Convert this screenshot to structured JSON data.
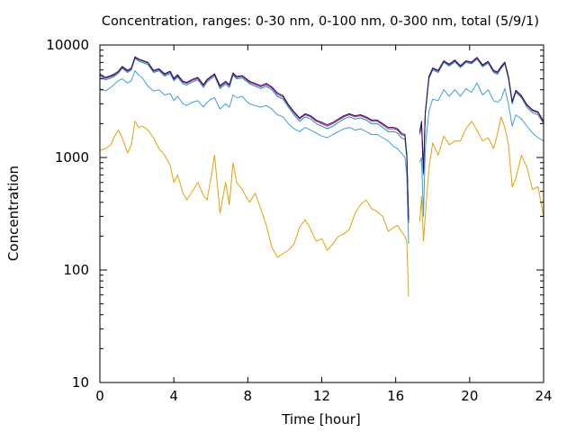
{
  "chart_data": {
    "type": "line",
    "title": "Concentration, ranges: 0-30 nm, 0-100 nm, 0-300 nm, total (5/9/1)",
    "xlabel": "Time [hour]",
    "ylabel": "Concentration",
    "xlim": [
      0,
      24
    ],
    "ylim": [
      10,
      10000
    ],
    "yscale": "log",
    "grid": false,
    "legend": "none",
    "x_ticks": [
      0,
      4,
      8,
      12,
      16,
      20,
      24
    ],
    "y_ticks": [
      10,
      100,
      1000,
      10000
    ],
    "gap": [
      16.75,
      17.3
    ],
    "series": [
      {
        "color": "#e6a000",
        "x": [
          0,
          0.3,
          0.6,
          0.8,
          1.0,
          1.2,
          1.5,
          1.7,
          1.9,
          2.1,
          2.3,
          2.6,
          2.9,
          3.2,
          3.5,
          3.8,
          4.0,
          4.2,
          4.5,
          4.7,
          5.0,
          5.3,
          5.6,
          5.8,
          6.0,
          6.2,
          6.5,
          6.8,
          7.0,
          7.2,
          7.4,
          7.7,
          7.9,
          8.1,
          8.4,
          8.7,
          9.0,
          9.3,
          9.6,
          9.9,
          10.2,
          10.5,
          10.8,
          11.1,
          11.4,
          11.7,
          12.0,
          12.3,
          12.6,
          12.9,
          13.2,
          13.5,
          13.8,
          14.1,
          14.4,
          14.7,
          15.0,
          15.3,
          15.6,
          15.9,
          16.1,
          16.3,
          16.5,
          16.6,
          16.7,
          17.3,
          17.4,
          17.5,
          17.6,
          17.8,
          18.0,
          18.3,
          18.6,
          18.9,
          19.2,
          19.5,
          19.8,
          20.1,
          20.4,
          20.7,
          21.0,
          21.3,
          21.5,
          21.7,
          21.9,
          22.1,
          22.3,
          22.5,
          22.8,
          23.1,
          23.4,
          23.7,
          24.0
        ],
        "values": [
          1150,
          1200,
          1300,
          1550,
          1750,
          1500,
          1100,
          1300,
          2100,
          1850,
          1900,
          1750,
          1500,
          1200,
          1050,
          850,
          600,
          700,
          480,
          420,
          500,
          600,
          460,
          420,
          650,
          1050,
          320,
          600,
          380,
          900,
          600,
          520,
          450,
          400,
          480,
          350,
          250,
          160,
          130,
          140,
          150,
          170,
          240,
          280,
          230,
          180,
          190,
          150,
          170,
          200,
          210,
          230,
          320,
          380,
          420,
          350,
          330,
          300,
          220,
          240,
          250,
          220,
          200,
          180,
          58,
          270,
          450,
          180,
          300,
          800,
          1350,
          1050,
          1550,
          1300,
          1400,
          1400,
          1800,
          2100,
          1750,
          1400,
          1500,
          1200,
          1600,
          2300,
          1850,
          1300,
          550,
          650,
          1050,
          820,
          520,
          550,
          300
        ]
      },
      {
        "color": "#3aa0d8",
        "x": [
          0,
          0.3,
          0.6,
          0.8,
          1.0,
          1.2,
          1.5,
          1.7,
          1.9,
          2.1,
          2.3,
          2.6,
          2.9,
          3.2,
          3.5,
          3.8,
          4.0,
          4.2,
          4.5,
          4.7,
          5.0,
          5.3,
          5.6,
          5.8,
          6.0,
          6.2,
          6.5,
          6.8,
          7.0,
          7.2,
          7.4,
          7.7,
          7.9,
          8.1,
          8.4,
          8.7,
          9.0,
          9.3,
          9.6,
          9.9,
          10.2,
          10.5,
          10.8,
          11.1,
          11.4,
          11.7,
          12.0,
          12.3,
          12.6,
          12.9,
          13.2,
          13.5,
          13.8,
          14.1,
          14.4,
          14.7,
          15.0,
          15.3,
          15.6,
          15.9,
          16.1,
          16.3,
          16.5,
          16.6,
          16.7,
          17.3,
          17.4,
          17.5,
          17.6,
          17.8,
          18.0,
          18.3,
          18.6,
          18.9,
          19.2,
          19.5,
          19.8,
          20.1,
          20.4,
          20.7,
          21.0,
          21.3,
          21.5,
          21.7,
          21.9,
          22.1,
          22.3,
          22.5,
          22.8,
          23.1,
          23.4,
          23.7,
          24.0
        ],
        "values": [
          4100,
          3900,
          4200,
          4500,
          4800,
          5000,
          4600,
          4800,
          5900,
          5400,
          5100,
          4300,
          3900,
          4000,
          3600,
          3700,
          3200,
          3500,
          3000,
          2900,
          3100,
          3200,
          2800,
          3100,
          3300,
          3400,
          2700,
          3000,
          2800,
          3600,
          3400,
          3500,
          3200,
          3000,
          2900,
          2800,
          2900,
          2700,
          2400,
          2300,
          2000,
          1800,
          1700,
          1850,
          1750,
          1650,
          1550,
          1500,
          1600,
          1700,
          1800,
          1850,
          1750,
          1800,
          1700,
          1600,
          1600,
          1500,
          1400,
          1250,
          1200,
          1100,
          1000,
          700,
          170,
          900,
          1000,
          300,
          1200,
          2600,
          3300,
          3200,
          4000,
          3500,
          4000,
          3500,
          4100,
          3800,
          4600,
          3600,
          4000,
          3200,
          3100,
          3300,
          4100,
          3000,
          1900,
          2400,
          2200,
          1900,
          1650,
          1500,
          1400
        ]
      },
      {
        "color": "#00a080",
        "x": [
          0,
          0.3,
          0.6,
          0.8,
          1.0,
          1.2,
          1.5,
          1.7,
          1.9,
          2.1,
          2.3,
          2.6,
          2.9,
          3.2,
          3.5,
          3.8,
          4.0,
          4.2,
          4.5,
          4.7,
          5.0,
          5.3,
          5.6,
          5.8,
          6.0,
          6.2,
          6.5,
          6.8,
          7.0,
          7.2,
          7.4,
          7.7,
          7.9,
          8.1,
          8.4,
          8.7,
          9.0,
          9.3,
          9.6,
          9.9,
          10.2,
          10.5,
          10.8,
          11.1,
          11.4,
          11.7,
          12.0,
          12.3,
          12.6,
          12.9,
          13.2,
          13.5,
          13.8,
          14.1,
          14.4,
          14.7,
          15.0,
          15.3,
          15.6,
          15.9,
          16.1,
          16.3,
          16.5,
          16.6,
          16.7,
          17.3,
          17.4,
          17.5,
          17.6,
          17.8,
          18.0,
          18.3,
          18.6,
          18.9,
          19.2,
          19.5,
          19.8,
          20.1,
          20.4,
          20.7,
          21.0,
          21.3,
          21.5,
          21.7,
          21.9,
          22.1,
          22.3,
          22.5,
          22.8,
          23.1,
          23.4,
          23.7,
          24.0
        ],
        "values": [
          5300,
          4900,
          5100,
          5300,
          5600,
          6200,
          5700,
          6000,
          7600,
          7200,
          7000,
          6700,
          5700,
          5900,
          5300,
          5600,
          4800,
          5200,
          4500,
          4400,
          4700,
          4900,
          4200,
          4700,
          5000,
          5300,
          4100,
          4500,
          4200,
          5400,
          5000,
          5100,
          4800,
          4500,
          4300,
          4100,
          4300,
          4000,
          3500,
          3300,
          2800,
          2400,
          2100,
          2300,
          2200,
          2000,
          1900,
          1800,
          1900,
          2050,
          2200,
          2300,
          2200,
          2250,
          2150,
          2000,
          2000,
          1850,
          1700,
          1700,
          1650,
          1500,
          1450,
          1000,
          260,
          1600,
          2000,
          700,
          2400,
          5000,
          6000,
          5700,
          7000,
          6500,
          7100,
          6300,
          7000,
          6800,
          7500,
          6400,
          6900,
          5700,
          5500,
          6200,
          6800,
          5000,
          3000,
          3800,
          3400,
          2800,
          2500,
          2400,
          2000
        ]
      },
      {
        "color": "#cc00cc",
        "x": [
          0,
          0.3,
          0.6,
          0.8,
          1.0,
          1.2,
          1.5,
          1.7,
          1.9,
          2.1,
          2.3,
          2.6,
          2.9,
          3.2,
          3.5,
          3.8,
          4.0,
          4.2,
          4.5,
          4.7,
          5.0,
          5.3,
          5.6,
          5.8,
          6.0,
          6.2,
          6.5,
          6.8,
          7.0,
          7.2,
          7.4,
          7.7,
          7.9,
          8.1,
          8.4,
          8.7,
          9.0,
          9.3,
          9.6,
          9.9,
          10.2,
          10.5,
          10.8,
          11.1,
          11.4,
          11.7,
          12.0,
          12.3,
          12.6,
          12.9,
          13.2,
          13.5,
          13.8,
          14.1,
          14.4,
          14.7,
          15.0,
          15.3,
          15.6,
          15.9,
          16.1,
          16.3,
          16.5,
          16.6,
          16.7,
          17.3,
          17.4,
          17.5,
          17.6,
          17.8,
          18.0,
          18.3,
          18.6,
          18.9,
          19.2,
          19.5,
          19.8,
          20.1,
          20.4,
          20.7,
          21.0,
          21.3,
          21.5,
          21.7,
          21.9,
          22.1,
          22.3,
          22.5,
          22.8,
          23.1,
          23.4,
          23.7,
          24.0
        ],
        "values": [
          5450,
          5050,
          5250,
          5450,
          5750,
          6350,
          5850,
          6150,
          7750,
          7400,
          7200,
          6900,
          5850,
          6050,
          5450,
          5750,
          4950,
          5350,
          4650,
          4550,
          4850,
          5050,
          4350,
          4850,
          5150,
          5450,
          4250,
          4650,
          4350,
          5550,
          5150,
          5250,
          4950,
          4650,
          4450,
          4250,
          4450,
          4150,
          3650,
          3450,
          2900,
          2500,
          2200,
          2400,
          2300,
          2100,
          2000,
          1900,
          2000,
          2150,
          2300,
          2400,
          2300,
          2350,
          2250,
          2100,
          2100,
          1950,
          1800,
          1800,
          1750,
          1600,
          1550,
          1050,
          270,
          1650,
          2050,
          720,
          2450,
          5150,
          6150,
          5850,
          7150,
          6650,
          7250,
          6450,
          7150,
          6950,
          7650,
          6550,
          7050,
          5850,
          5650,
          6350,
          6950,
          5150,
          3100,
          3900,
          3500,
          2900,
          2600,
          2500,
          2050
        ]
      },
      {
        "color": "#1a1a5c",
        "x": [
          0,
          0.3,
          0.6,
          0.8,
          1.0,
          1.2,
          1.5,
          1.7,
          1.9,
          2.1,
          2.3,
          2.6,
          2.9,
          3.2,
          3.5,
          3.8,
          4.0,
          4.2,
          4.5,
          4.7,
          5.0,
          5.3,
          5.6,
          5.8,
          6.0,
          6.2,
          6.5,
          6.8,
          7.0,
          7.2,
          7.4,
          7.7,
          7.9,
          8.1,
          8.4,
          8.7,
          9.0,
          9.3,
          9.6,
          9.9,
          10.2,
          10.5,
          10.8,
          11.1,
          11.4,
          11.7,
          12.0,
          12.3,
          12.6,
          12.9,
          13.2,
          13.5,
          13.8,
          14.1,
          14.4,
          14.7,
          15.0,
          15.3,
          15.6,
          15.9,
          16.1,
          16.3,
          16.5,
          16.6,
          16.7,
          17.3,
          17.4,
          17.5,
          17.6,
          17.8,
          18.0,
          18.3,
          18.6,
          18.9,
          19.2,
          19.5,
          19.8,
          20.1,
          20.4,
          20.7,
          21.0,
          21.3,
          21.5,
          21.7,
          21.9,
          22.1,
          22.3,
          22.5,
          22.8,
          23.1,
          23.4,
          23.7,
          24.0
        ],
        "values": [
          5550,
          5150,
          5350,
          5550,
          5850,
          6450,
          5950,
          6250,
          7850,
          7500,
          7300,
          7000,
          5950,
          6150,
          5550,
          5850,
          5050,
          5450,
          4750,
          4650,
          4950,
          5150,
          4450,
          4950,
          5250,
          5550,
          4350,
          4750,
          4450,
          5650,
          5250,
          5350,
          5050,
          4750,
          4550,
          4350,
          4550,
          4250,
          3750,
          3550,
          2950,
          2550,
          2250,
          2450,
          2350,
          2150,
          2050,
          1950,
          2050,
          2200,
          2350,
          2450,
          2350,
          2400,
          2300,
          2150,
          2150,
          2000,
          1850,
          1850,
          1800,
          1650,
          1600,
          1080,
          280,
          1700,
          2100,
          740,
          2500,
          5250,
          6250,
          5950,
          7250,
          6750,
          7350,
          6550,
          7250,
          7050,
          7750,
          6650,
          7150,
          5950,
          5750,
          6450,
          7050,
          5250,
          3150,
          3950,
          3550,
          2950,
          2650,
          2550,
          2100
        ]
      }
    ]
  }
}
